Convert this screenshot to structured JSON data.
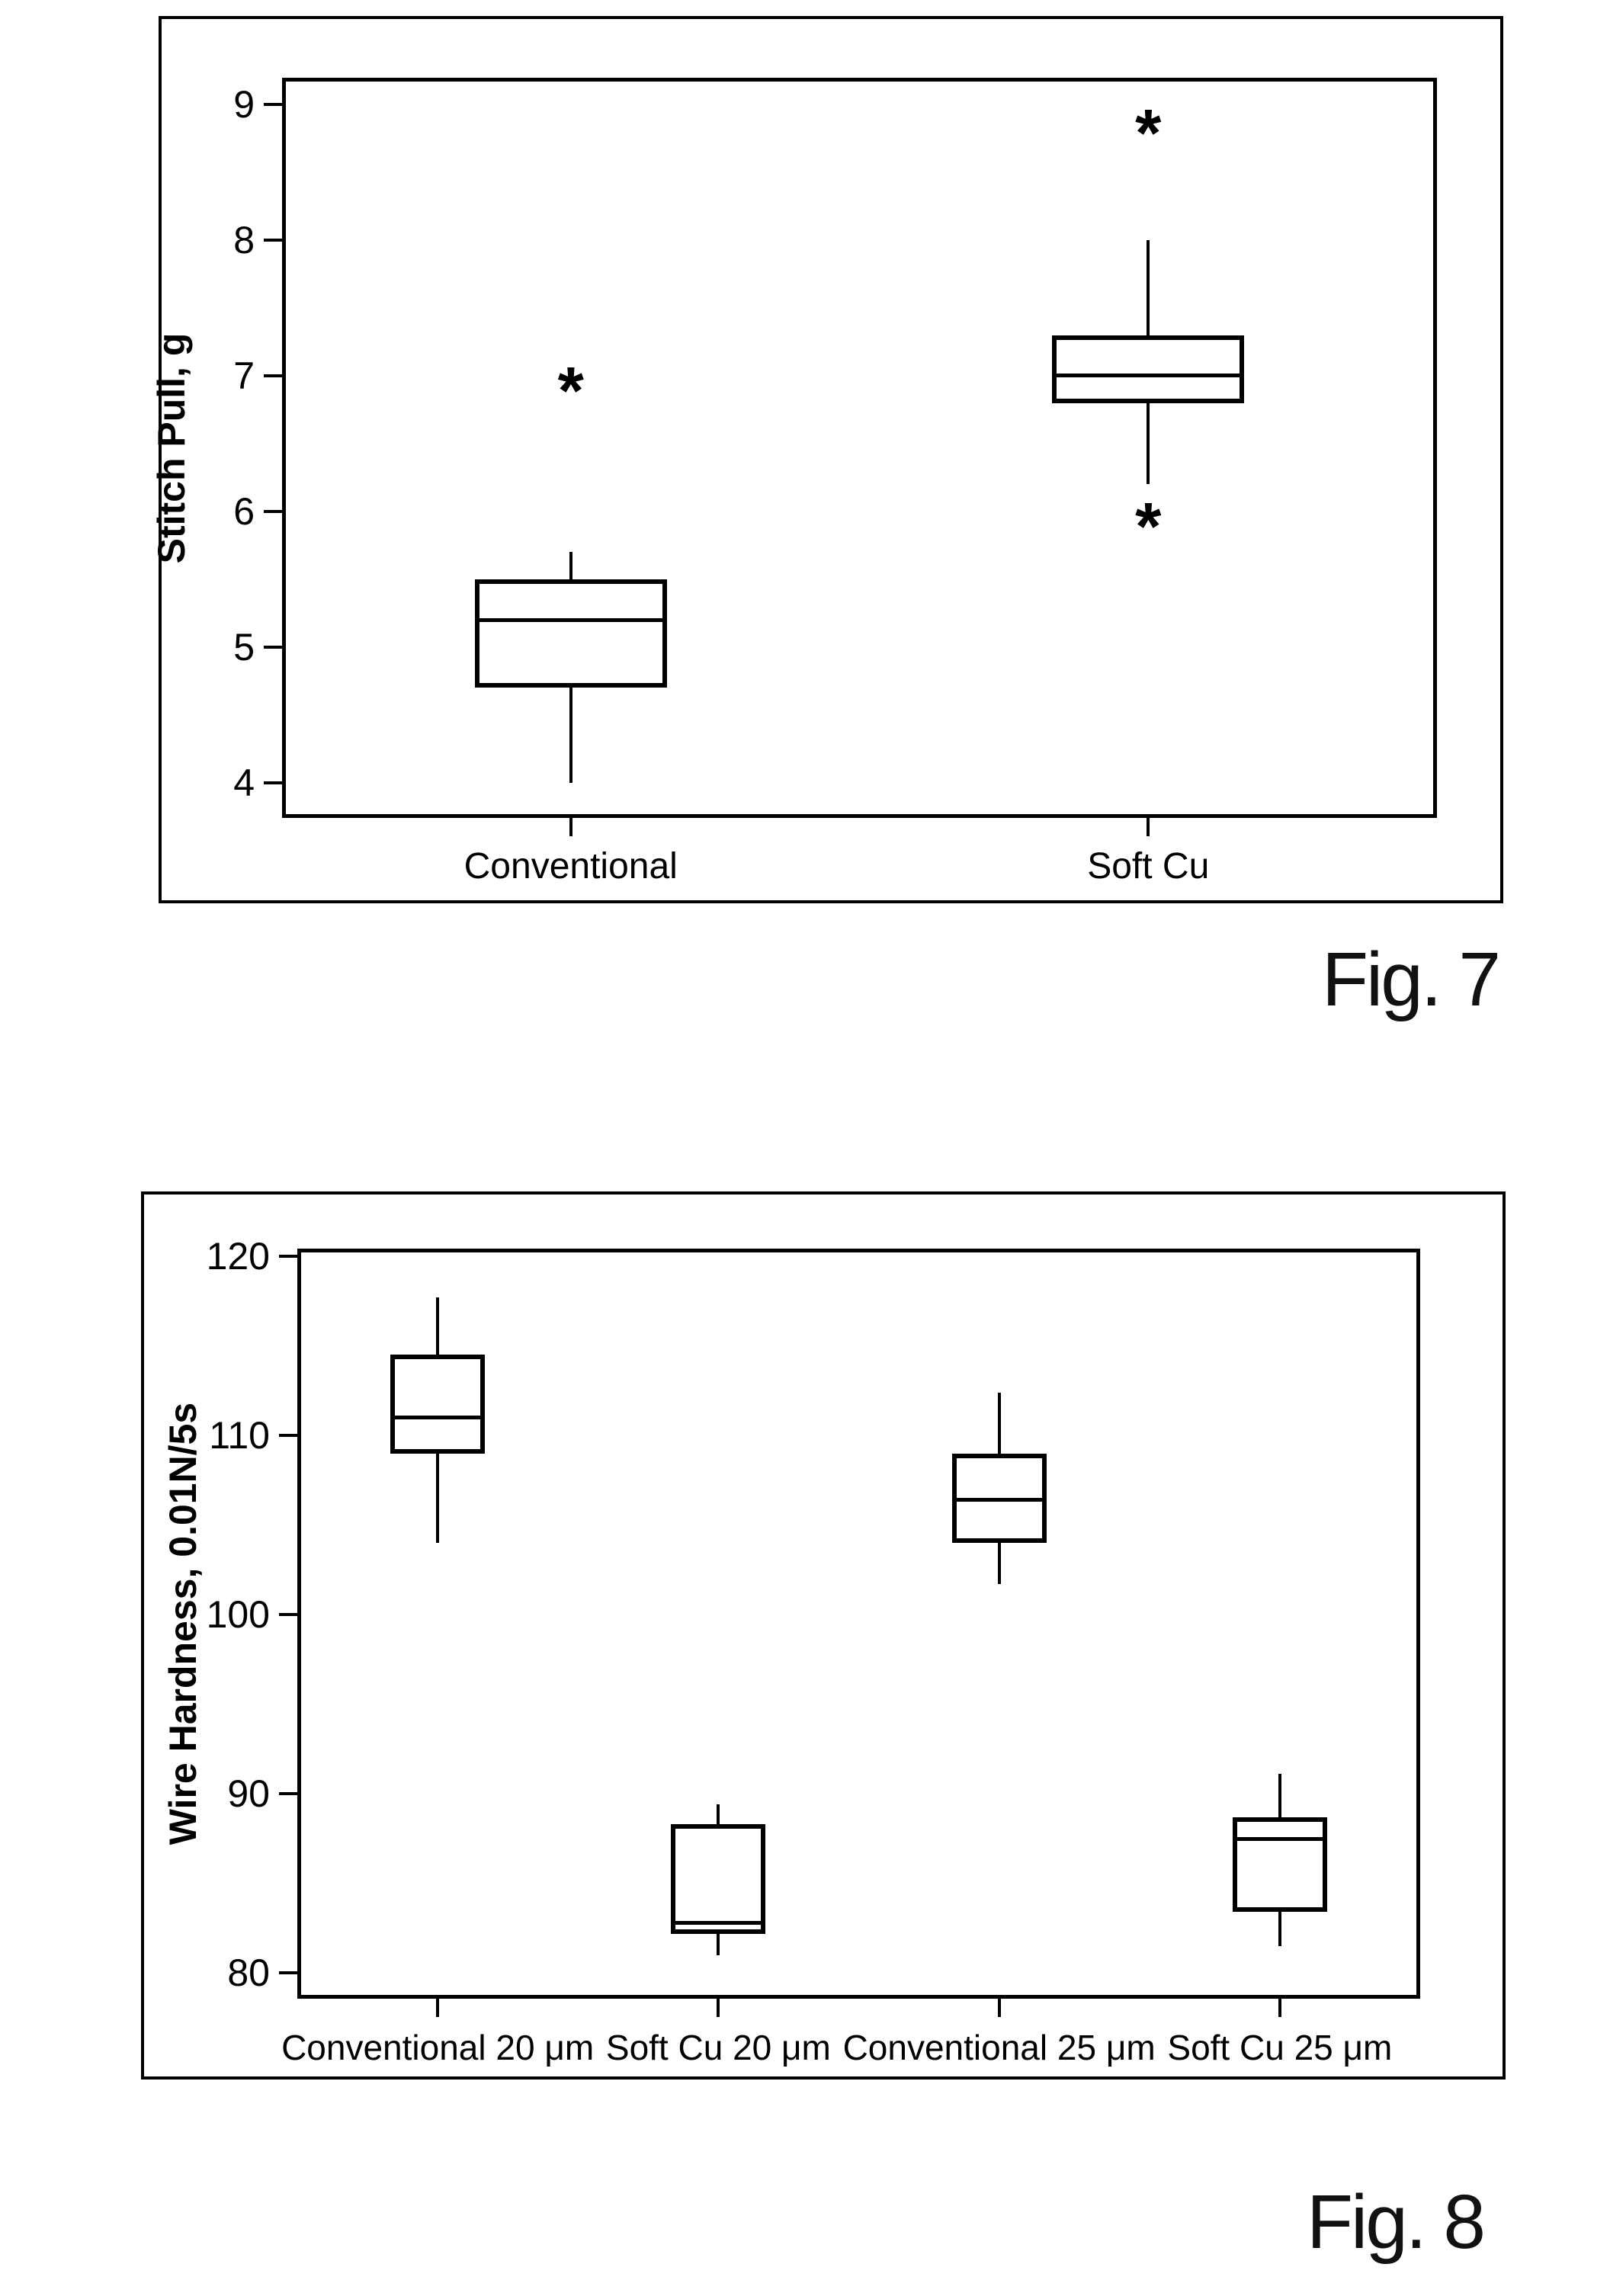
{
  "page": {
    "background": "#ffffff",
    "ink_color": "#000000"
  },
  "figures": [
    {
      "id": "fig7",
      "caption": "Fig. 7",
      "chart_data": {
        "type": "boxplot",
        "title": "",
        "xlabel": "",
        "ylabel": "Stitch Pull, g",
        "ylim": [
          3.74,
          9.2
        ],
        "yticks": [
          4,
          5,
          6,
          7,
          8,
          9
        ],
        "grid": false,
        "legend": "none",
        "outlier_marker": "*",
        "categories": [
          "Conventional",
          "Soft Cu"
        ],
        "series": [
          {
            "category": "Conventional",
            "whisker_low": 4.0,
            "q1": 4.7,
            "median": 5.2,
            "q3": 5.5,
            "whisker_high": 5.7,
            "outliers": [
              7.0
            ]
          },
          {
            "category": "Soft Cu",
            "whisker_low": 6.2,
            "q1": 6.8,
            "median": 7.0,
            "q3": 7.3,
            "whisker_high": 8.0,
            "outliers": [
              8.9,
              6.0
            ]
          }
        ]
      }
    },
    {
      "id": "fig8",
      "caption": "Fig. 8",
      "chart_data": {
        "type": "boxplot",
        "title": "",
        "xlabel": "",
        "ylabel": "Wire Hardness, 0.01N/5s",
        "ylim": [
          78.6,
          120.4
        ],
        "yticks": [
          80,
          90,
          100,
          110,
          120
        ],
        "grid": false,
        "legend": "none",
        "outlier_marker": "*",
        "categories": [
          "Conventional 20 μm",
          "Soft Cu 20 μm",
          "Conventional 25 μm",
          "Soft Cu 25 μm"
        ],
        "series": [
          {
            "category": "Conventional 20 μm",
            "whisker_low": 104.0,
            "q1": 109.0,
            "median": 111.0,
            "q3": 114.5,
            "whisker_high": 117.7,
            "outliers": []
          },
          {
            "category": "Soft Cu 20 μm",
            "whisker_low": 81.0,
            "q1": 82.2,
            "median": 82.8,
            "q3": 88.3,
            "whisker_high": 89.4,
            "outliers": []
          },
          {
            "category": "Conventional 25 μm",
            "whisker_low": 101.7,
            "q1": 104.0,
            "median": 106.4,
            "q3": 109.0,
            "whisker_high": 112.4,
            "outliers": []
          },
          {
            "category": "Soft Cu 25 μm",
            "whisker_low": 81.5,
            "q1": 83.4,
            "median": 87.5,
            "q3": 88.7,
            "whisker_high": 91.1,
            "outliers": []
          }
        ]
      }
    }
  ]
}
